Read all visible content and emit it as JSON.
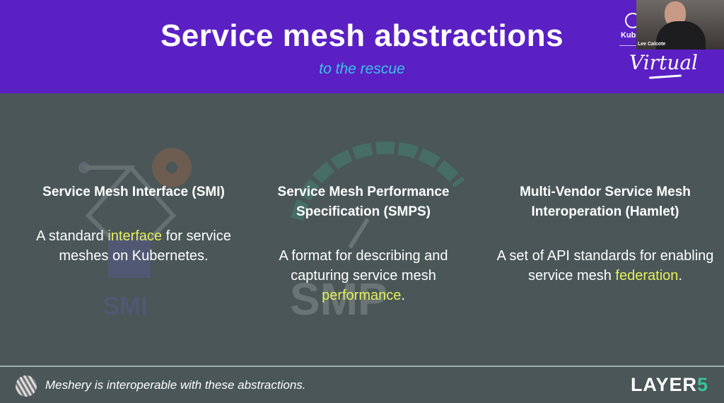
{
  "header": {
    "title": "Service mesh abstractions",
    "subtitle": "to the rescue"
  },
  "event": {
    "kube_label": "Kuber",
    "virtual_label": "Virtual",
    "speaker_name": "Lee Calcote"
  },
  "columns": [
    {
      "heading": "Service Mesh Interface (SMI)",
      "text_before": "A standard ",
      "highlight": "interface",
      "text_after": " for service meshes on Kubernetes.",
      "watermark": "SMI"
    },
    {
      "heading": "Service Mesh Performance Specification (SMPS)",
      "text_before": "A format for describing and capturing service mesh ",
      "highlight": "performance",
      "text_after": ".",
      "watermark": "SMP"
    },
    {
      "heading": "Multi-Vendor Service Mesh Interoperation (Hamlet)",
      "text_before": "A set of API standards for enabling service mesh ",
      "highlight": "federation",
      "text_after": "."
    }
  ],
  "footer": {
    "text": "Meshery is interoperable with these abstractions.",
    "logo_main": "LAYER",
    "logo_accent": "5"
  },
  "colors": {
    "header": "#5a20c4",
    "background": "#4a5657",
    "subtitle": "#3ec3e6",
    "highlight": "#e6f05c",
    "logo_accent": "#3bc19c"
  }
}
